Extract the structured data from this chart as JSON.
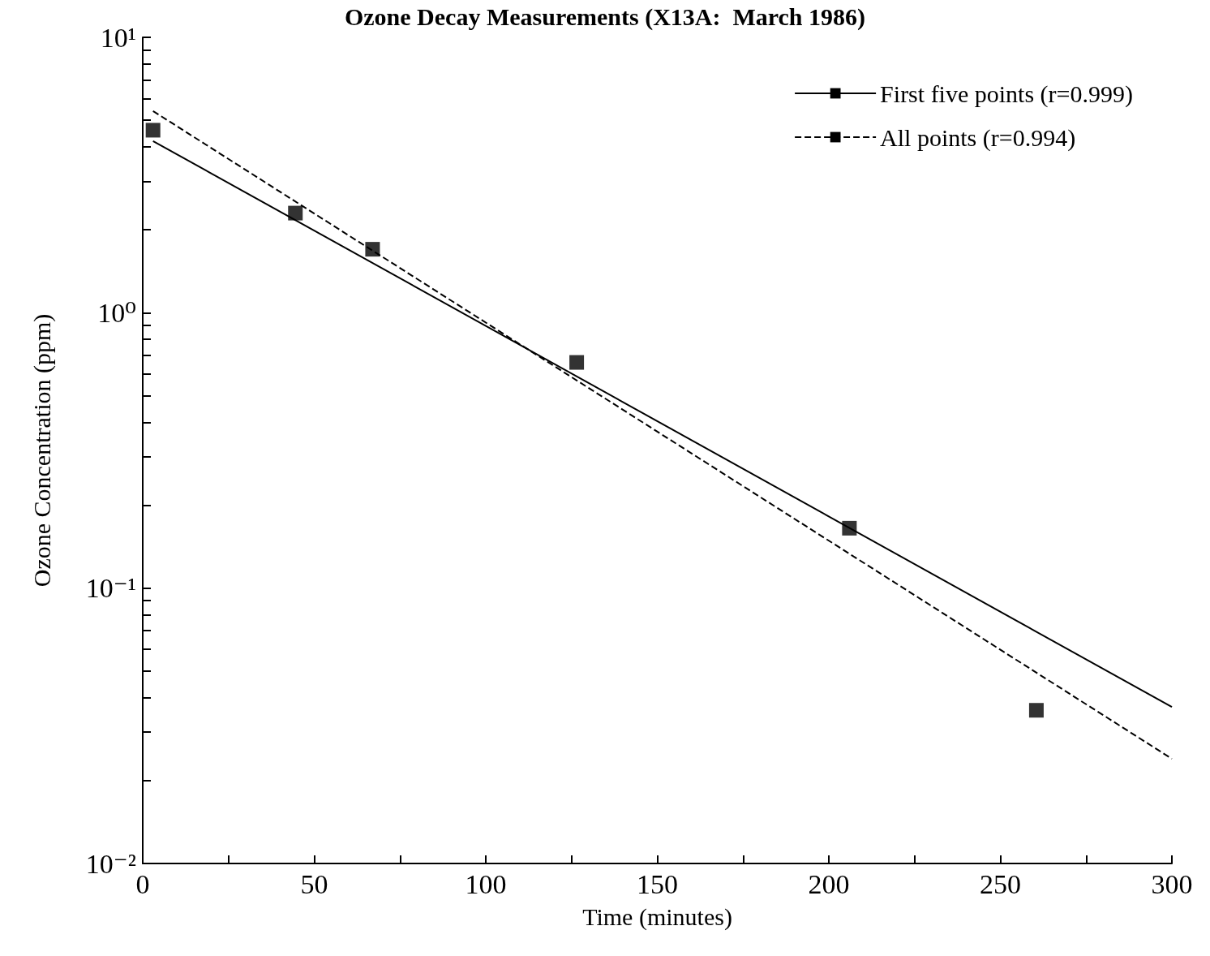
{
  "chart_data": {
    "type": "line",
    "title": "Ozone Decay Measurements (X13A:  March 1986)",
    "xlabel": "Time (minutes)",
    "ylabel": "Ozone Concentration (ppm)",
    "log": "y",
    "grid": false,
    "legend": "top right",
    "xlim": [
      0,
      300
    ],
    "xticks": [
      0,
      {
        "value": 25,
        "label": null
      },
      50,
      {
        "value": 75,
        "label": null
      },
      100,
      {
        "value": 125,
        "label": null
      },
      150,
      {
        "value": 175,
        "label": null
      },
      200,
      {
        "value": 225,
        "label": null
      },
      250,
      {
        "value": 275,
        "label": null
      },
      300
    ],
    "ylim": [
      0.01,
      10
    ],
    "yticks": [
      {
        "value": 0.01,
        "label": "10⁻²"
      },
      {
        "value": 0.02,
        "label": null
      },
      {
        "value": 0.03,
        "label": null
      },
      {
        "value": 0.04,
        "label": null
      },
      {
        "value": 0.05,
        "label": null
      },
      {
        "value": 0.06,
        "label": null
      },
      {
        "value": 0.07,
        "label": null
      },
      {
        "value": 0.08,
        "label": null
      },
      {
        "value": 0.09,
        "label": null
      },
      {
        "value": 0.1,
        "label": "10⁻¹"
      },
      {
        "value": 0.2,
        "label": null
      },
      {
        "value": 0.3,
        "label": null
      },
      {
        "value": 0.4,
        "label": null
      },
      {
        "value": 0.5,
        "label": null
      },
      {
        "value": 0.6,
        "label": null
      },
      {
        "value": 0.7,
        "label": null
      },
      {
        "value": 0.8,
        "label": null
      },
      {
        "value": 0.9,
        "label": null
      },
      {
        "value": 1,
        "label": "10⁰"
      },
      {
        "value": 2,
        "label": null
      },
      {
        "value": 3,
        "label": null
      },
      {
        "value": 4,
        "label": null
      },
      {
        "value": 5,
        "label": null
      },
      {
        "value": 6,
        "label": null
      },
      {
        "value": 7,
        "label": null
      },
      {
        "value": 8,
        "label": null
      },
      {
        "value": 9,
        "label": null
      },
      {
        "value": 10,
        "label": "10¹"
      }
    ],
    "series": [
      {
        "type": "scatter",
        "marker": "square",
        "color": "#000000",
        "x": [
          3,
          44.5,
          67,
          126.5,
          206,
          260.5
        ],
        "values": [
          4.6,
          2.3,
          1.7,
          0.66,
          0.165,
          0.036
        ]
      },
      {
        "name": "First five points (r=0.999)",
        "line_style": "solid",
        "marker": "none",
        "color": "#000000",
        "x": [
          3,
          300
        ],
        "values": [
          4.2,
          0.037
        ]
      },
      {
        "name": "All points (r=0.994)",
        "line_style": "dashed",
        "marker": "none",
        "color": "#000000",
        "x": [
          3,
          300
        ],
        "values": [
          5.4,
          0.024
        ]
      }
    ]
  }
}
